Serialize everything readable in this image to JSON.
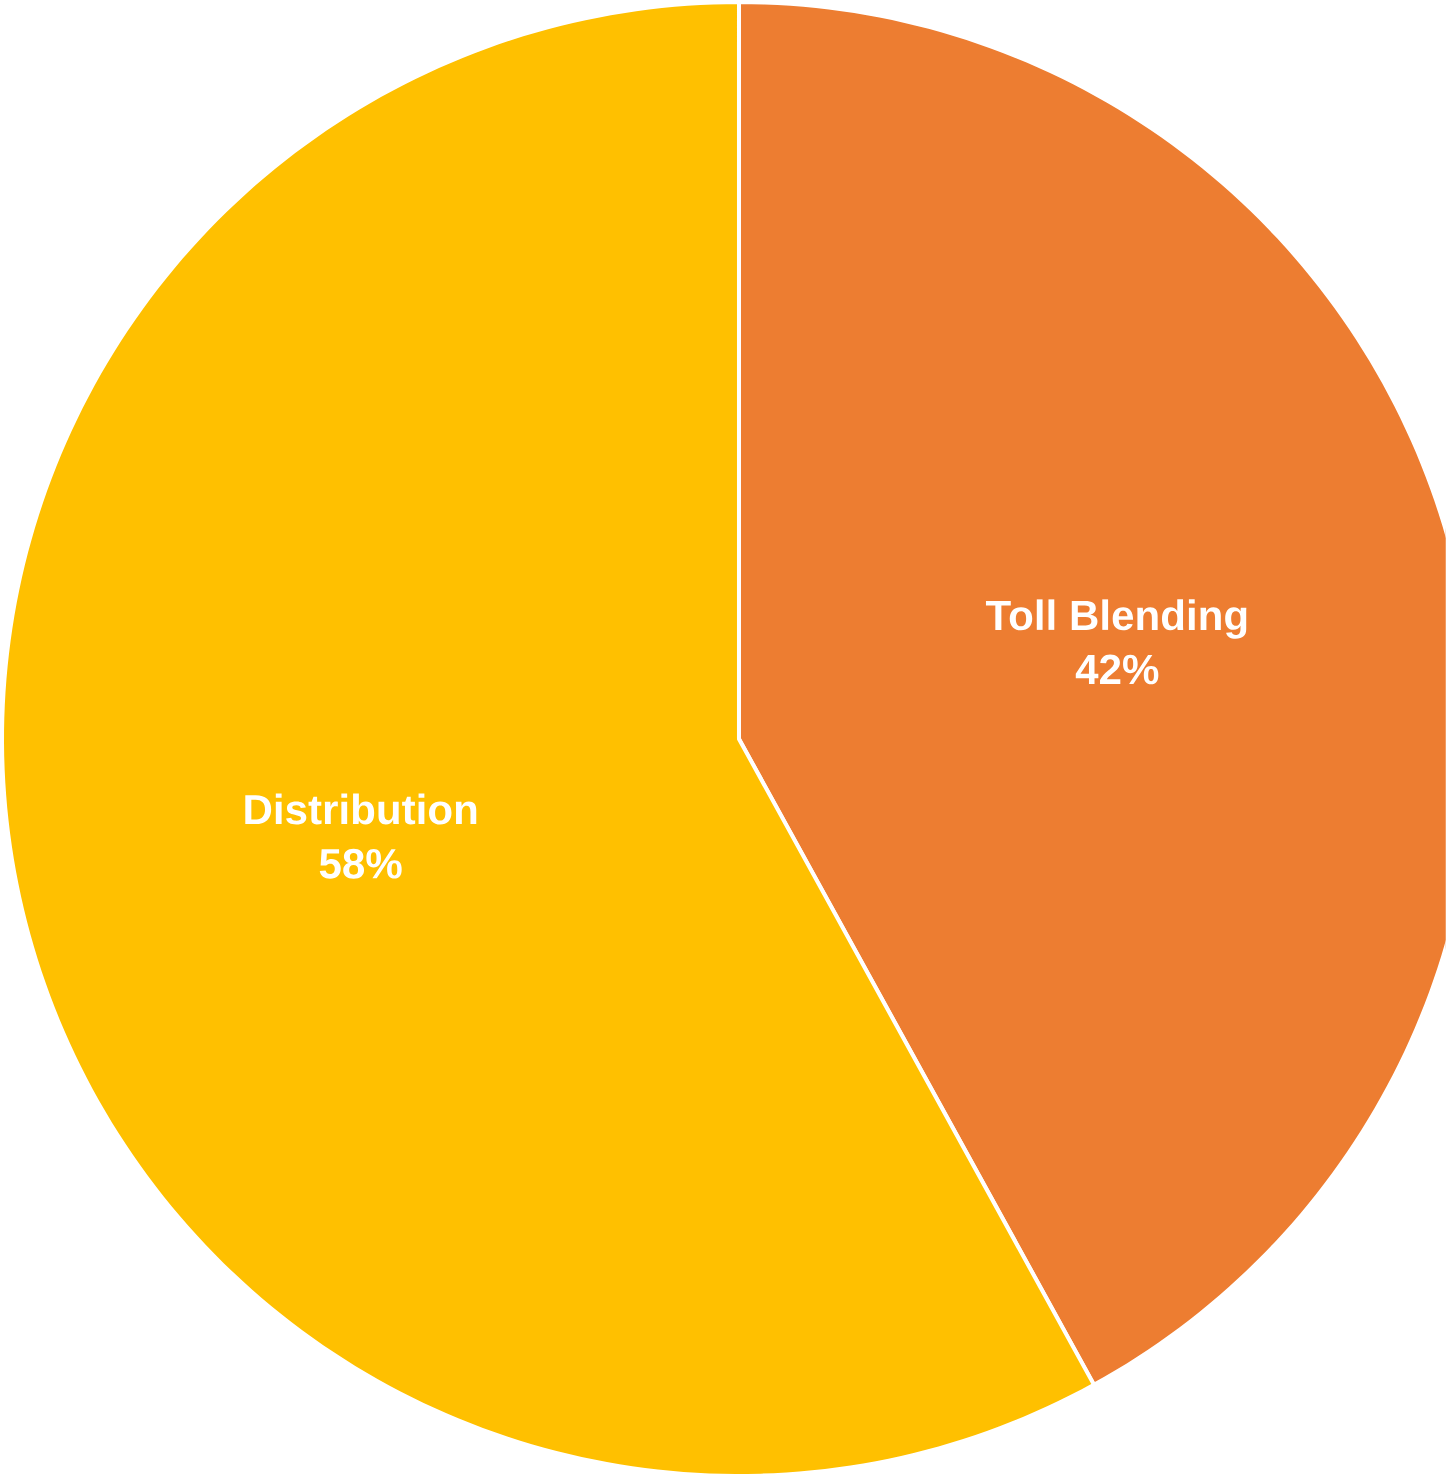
{
  "chart_data": {
    "type": "pie",
    "categories": [
      "Toll Blending",
      "Distribution"
    ],
    "values": [
      42,
      58
    ],
    "value_labels": [
      "42%",
      "58%"
    ],
    "colors": [
      "#ed7d31",
      "#ffc000"
    ]
  }
}
